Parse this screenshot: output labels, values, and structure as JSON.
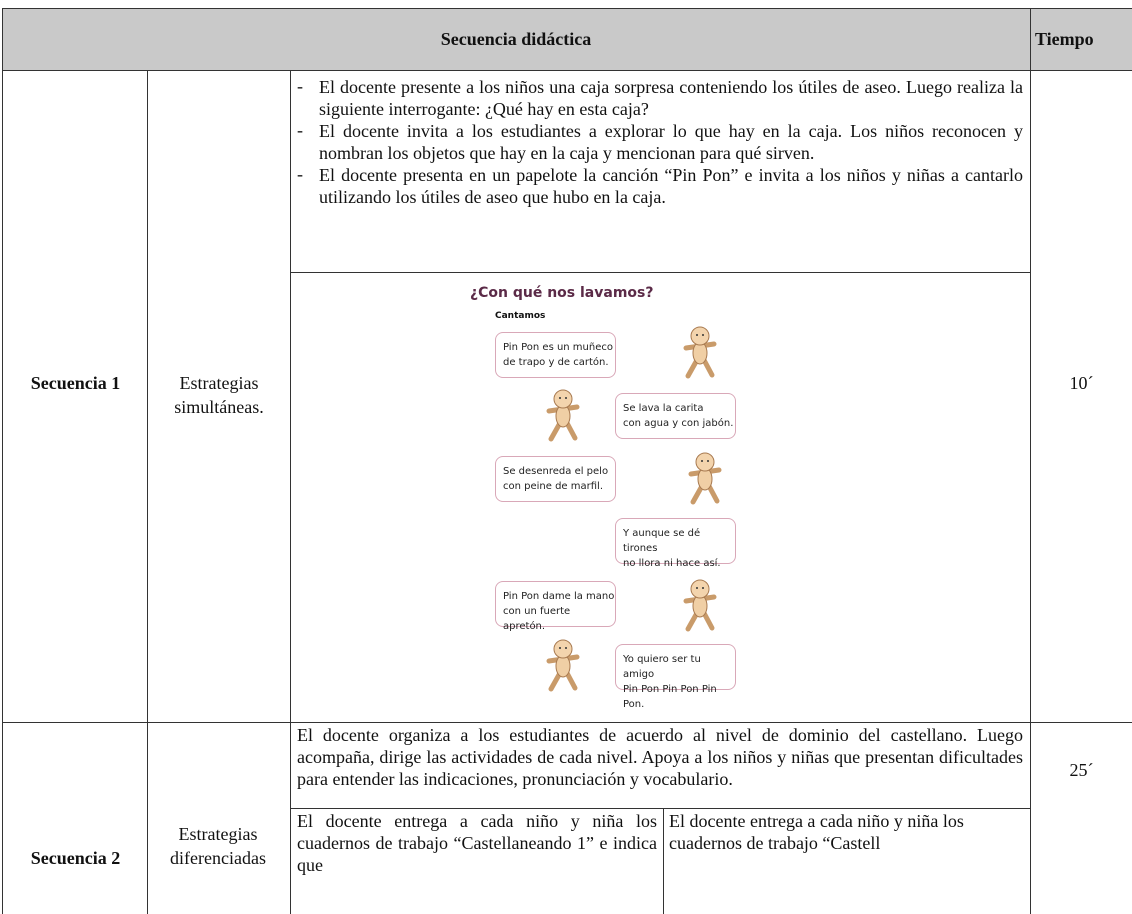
{
  "header": {
    "title": "Secuencia didáctica",
    "time_label": "Tiempo"
  },
  "rows": [
    {
      "label": "Secuencia 1",
      "strategy": "Estrategias simultáneas.",
      "time": "10´",
      "activities": [
        "El docente presente a los niños una caja sorpresa conteniendo los útiles de aseo. Luego realiza la siguiente interrogante: ¿Qué hay en esta caja?",
        "El docente invita a los estudiantes a explorar lo que hay en la caja. Los niños reconocen y nombran los objetos que hay en la caja y mencionan para qué sirven.",
        "El docente presenta en un papelote la canción “Pin Pon” e invita a los niños y niñas a cantarlo utilizando los útiles de aseo que hubo en la caja."
      ],
      "song": {
        "title": "¿Con qué nos lavamos?",
        "subtitle": "Cantamos",
        "verses": [
          [
            "Pin Pon es un muñeco",
            "de trapo y de cartón."
          ],
          [
            "Se lava la carita",
            "con agua y con jabón."
          ],
          [
            "Se desenreda el pelo",
            "con peine de marfil."
          ],
          [
            "Y aunque se dé tirones",
            "no llora ni hace así."
          ],
          [
            "Pin Pon dame la mano",
            "con un fuerte apretón."
          ],
          [
            "Yo quiero ser tu amigo",
            "Pin Pon Pin Pon Pin Pon."
          ]
        ]
      }
    },
    {
      "label": "Secuencia 2",
      "strategy": "Estrategias diferenciadas",
      "time": "25´",
      "paragraph": "El docente organiza a los estudiantes de acuerdo al nivel de dominio del castellano. Luego acompaña, dirige las actividades de cada nivel. Apoya a los niños y niñas que presentan dificultades para entender las indicaciones, pronunciación y vocabulario.",
      "columns": [
        "El docente entrega a cada niño y niña los cuadernos de trabajo “Castellaneando 1” e indica que",
        "El docente entrega a cada niño y niña los cuadernos de trabajo “Castell"
      ]
    }
  ]
}
